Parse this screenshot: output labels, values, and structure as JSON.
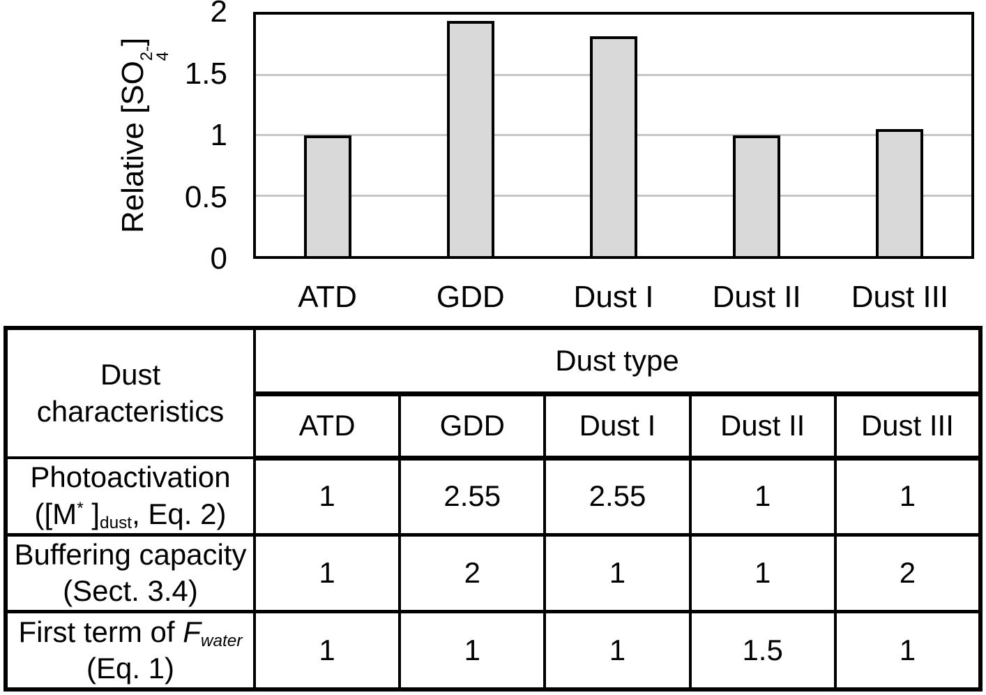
{
  "chart_data": [
    {
      "type": "bar",
      "title": "",
      "categories": [
        "ATD",
        "GDD",
        "Dust I",
        "Dust II",
        "Dust III"
      ],
      "values": [
        1.0,
        1.95,
        1.82,
        1.0,
        1.05
      ],
      "xlabel": "",
      "ylabel": "Relative [SO4 2-]",
      "ylim": [
        0,
        2
      ],
      "yticks": [
        {
          "value": 0,
          "label": "0"
        },
        {
          "value": 0.5,
          "label": "0.5"
        },
        {
          "value": 1,
          "label": "1"
        },
        {
          "value": 1.5,
          "label": "1.5"
        },
        {
          "value": 2,
          "label": "2"
        }
      ],
      "grid": true,
      "legend": false,
      "colors": {
        "bar_fill": "#d9d9d9",
        "bar_border": "#000000",
        "gridline": "#c6c6c6",
        "frame": "#000000"
      }
    },
    {
      "type": "table",
      "corner_header": "Dust characteristics",
      "group_header": "Dust type",
      "columns": [
        "ATD",
        "GDD",
        "Dust I",
        "Dust II",
        "Dust III"
      ],
      "rows": [
        {
          "label": "Photoactivation ([M*]dust, Eq. 2)",
          "values": [
            "1",
            "2.55",
            "2.55",
            "1",
            "1"
          ]
        },
        {
          "label": "Buffering capacity (Sect. 3.4)",
          "values": [
            "1",
            "2",
            "1",
            "1",
            "2"
          ]
        },
        {
          "label": "First term of Fwater (Eq. 1)",
          "values": [
            "1",
            "1",
            "1",
            "1.5",
            "1"
          ]
        }
      ]
    }
  ],
  "rich_text": {
    "y_axis_label": [
      {
        "t": "n",
        "s": "Relative [SO"
      },
      {
        "t": "stack",
        "sup": "2-",
        "sub": "4"
      },
      {
        "t": "n",
        "s": "]"
      }
    ],
    "corner_header_lines": [
      [
        {
          "t": "n",
          "s": "Dust"
        }
      ],
      [
        {
          "t": "n",
          "s": "characteristics"
        }
      ]
    ],
    "row_label_lines": [
      [
        [
          {
            "t": "n",
            "s": "Photoactivation"
          }
        ],
        [
          {
            "t": "n",
            "s": "([M"
          },
          {
            "t": "sup",
            "s": "*"
          },
          {
            "t": "n",
            "s": " ]"
          },
          {
            "t": "sub",
            "s": "dust"
          },
          {
            "t": "n",
            "s": ", Eq. 2)"
          }
        ]
      ],
      [
        [
          {
            "t": "n",
            "s": "Buffering capacity"
          }
        ],
        [
          {
            "t": "n",
            "s": "(Sect. 3.4)"
          }
        ]
      ],
      [
        [
          {
            "t": "n",
            "s": "First term of "
          },
          {
            "t": "i",
            "s": "F"
          },
          {
            "t": "isub",
            "s": "water"
          }
        ],
        [
          {
            "t": "n",
            "s": "(Eq. 1)"
          }
        ]
      ]
    ]
  }
}
